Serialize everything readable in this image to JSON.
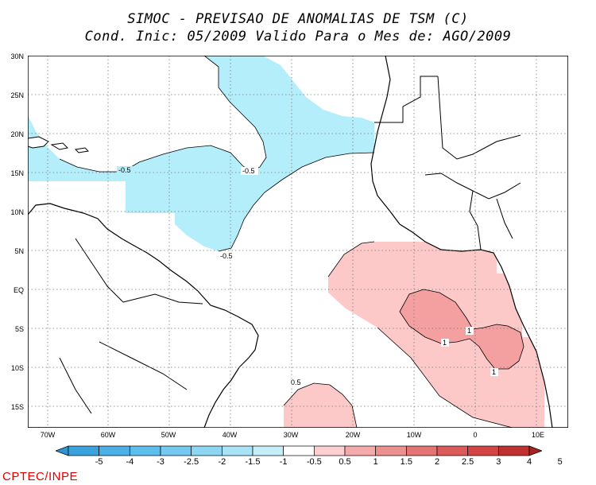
{
  "title": {
    "line1": "SIMOC - PREVISAO DE ANOMALIAS DE TSM (C)",
    "line2": "Cond. Inic: 05/2009   Valido Para o Mes de: AGO/2009"
  },
  "axes": {
    "lat_labels": [
      "30N",
      "25N",
      "20N",
      "15N",
      "10N",
      "5N",
      "EQ",
      "5S",
      "10S",
      "15S"
    ],
    "lon_labels": [
      "70W",
      "60W",
      "50W",
      "40W",
      "30W",
      "20W",
      "10W",
      "0",
      "10E"
    ]
  },
  "contour_labels": [
    {
      "value": "-0.5",
      "region": "caribbean"
    },
    {
      "value": "-0.5",
      "region": "north-atlantic"
    },
    {
      "value": "-0.5",
      "region": "brazil-coast"
    },
    {
      "value": "0.5",
      "region": "south-atlantic"
    },
    {
      "value": "1",
      "region": "gulf-of-guinea-a"
    },
    {
      "value": "1",
      "region": "gulf-of-guinea-b"
    },
    {
      "value": "1",
      "region": "angola-coast"
    }
  ],
  "colorbar": {
    "labels": [
      "-5",
      "-4",
      "-3",
      "-2.5",
      "-2",
      "-1.5",
      "-1",
      "-0.5",
      "0.5",
      "1",
      "1.5",
      "2",
      "2.5",
      "3",
      "4",
      "5"
    ],
    "colors": [
      "#2e95d1",
      "#3aa2dc",
      "#4ab0e6",
      "#5cbeea",
      "#73c9ef",
      "#8dd6f3",
      "#a9e3f7",
      "#c6eef9",
      "#ffffff",
      "#fcd0d0",
      "#f4aaaa",
      "#ec8f8f",
      "#e47474",
      "#dc5a5a",
      "#d44444",
      "#c03030",
      "#a82222"
    ]
  },
  "legend": {
    "negative_fill": "#b4eefa",
    "positive_fill": "#fcc8c8",
    "positive_strong_fill": "#f4a0a0"
  },
  "credit": "CPTEC/INPE"
}
